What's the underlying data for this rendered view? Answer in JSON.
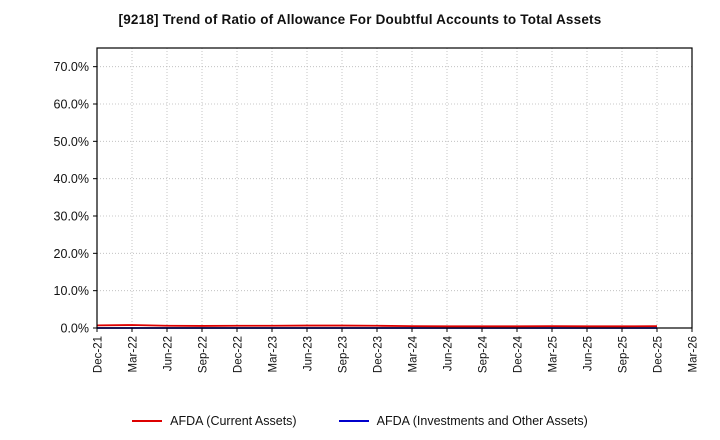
{
  "chart_data": {
    "type": "line",
    "title": "[9218]  Trend of Ratio of Allowance For Doubtful Accounts to Total Assets",
    "categories": [
      "Dec-21",
      "Mar-22",
      "Jun-22",
      "Sep-22",
      "Dec-22",
      "Mar-23",
      "Jun-23",
      "Sep-23",
      "Dec-23",
      "Mar-24",
      "Jun-24",
      "Sep-24",
      "Dec-24",
      "Mar-25",
      "Jun-25",
      "Sep-25",
      "Dec-25",
      "Mar-26"
    ],
    "series": [
      {
        "name": "AFDA (Current Assets)",
        "color": "#dd0000",
        "values": [
          0.7,
          0.8,
          0.6,
          0.55,
          0.6,
          0.6,
          0.65,
          0.65,
          0.6,
          0.5,
          0.45,
          0.45,
          0.45,
          0.5,
          0.45,
          0.45,
          0.5,
          null
        ]
      },
      {
        "name": "AFDA (Investments and Other Assets)",
        "color": "#0000cc",
        "values": [
          0.0,
          0.0,
          0.0,
          0.0,
          0.0,
          0.0,
          0.0,
          0.0,
          0.0,
          0.0,
          0.0,
          0.0,
          0.0,
          0.0,
          0.0,
          0.0,
          0.0,
          null
        ]
      }
    ],
    "xlabel": "",
    "ylabel": "",
    "ylim": [
      0,
      75
    ],
    "yticks": [
      0,
      10,
      20,
      30,
      40,
      50,
      60,
      70
    ],
    "ytick_format": "percent_one_decimal",
    "grid": true,
    "grid_style": "dotted",
    "legend_position": "bottom"
  },
  "style": {
    "grid_color": "#b8b8b8",
    "axis_color": "#000000",
    "tick_label_color": "#111111"
  }
}
